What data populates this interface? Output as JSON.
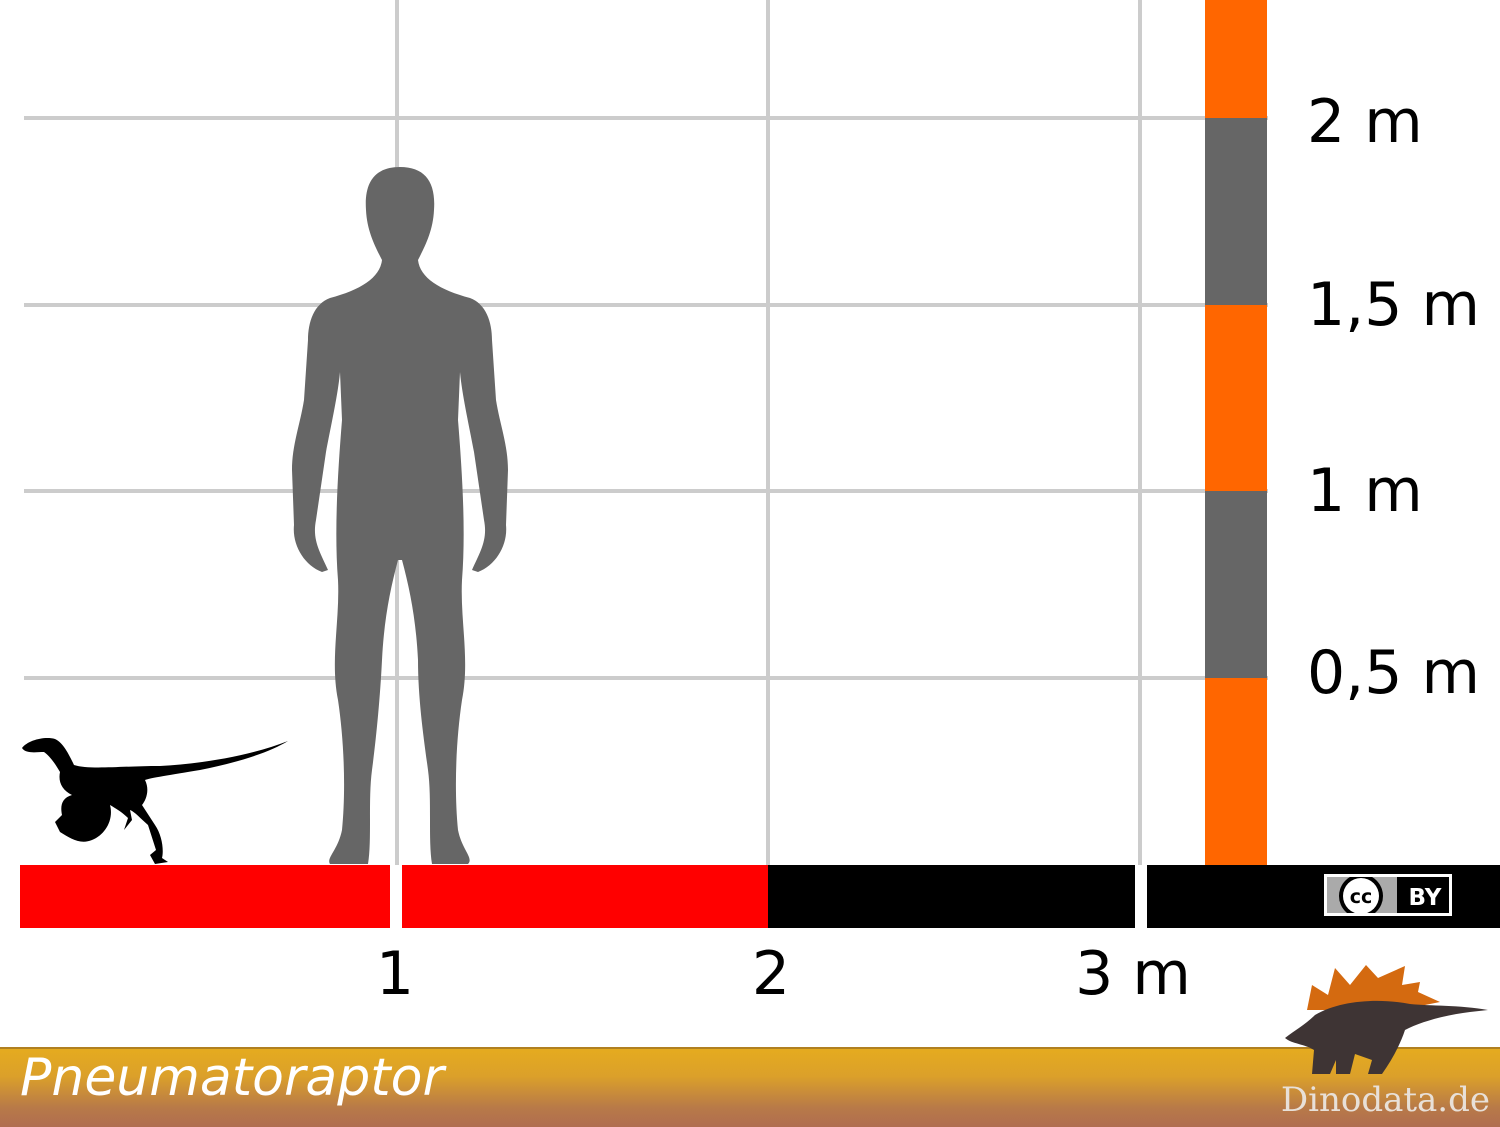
{
  "title": "Pneumatoraptor",
  "site": "Dinodata.de",
  "license": {
    "cc": "cc",
    "by": "BY"
  },
  "vertical_scale": {
    "labels": [
      "2 m",
      "1,5 m",
      "1 m",
      "0,5 m"
    ],
    "colors": [
      "#ff6600",
      "#666666"
    ]
  },
  "horizontal_scale": {
    "labels": [
      "1",
      "2",
      "3 m"
    ],
    "colors": {
      "dino_length": "#ff0000",
      "rest": "#000000"
    },
    "dino_length_m": 2
  },
  "silhouettes": {
    "human": "human-silhouette",
    "dinosaur": "pneumatoraptor-silhouette",
    "logo": "stegosaurus-logo"
  },
  "colors": {
    "grid": "#cccccc",
    "human": "#666666",
    "footer_top": "#e5ab1f",
    "footer_bottom": "#b06d50"
  }
}
